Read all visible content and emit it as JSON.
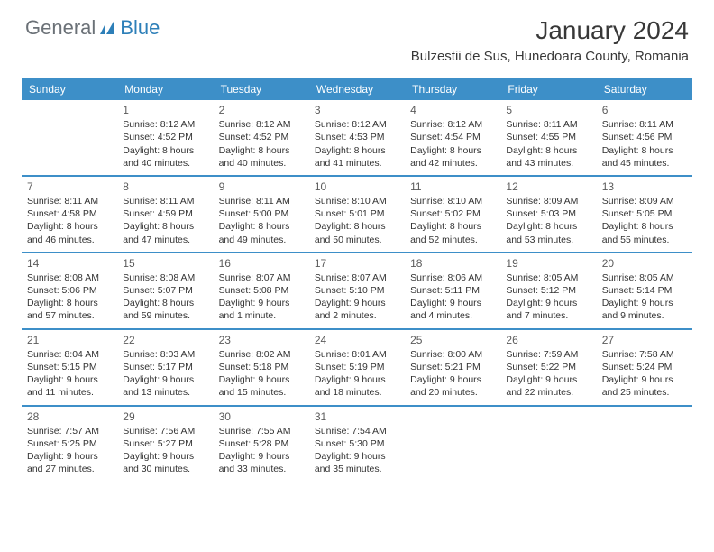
{
  "logo": {
    "general": "General",
    "blue": "Blue"
  },
  "title": "January 2024",
  "location": "Bulzestii de Sus, Hunedoara County, Romania",
  "colors": {
    "header_bg": "#3d8fc8",
    "header_text": "#ffffff",
    "row_border": "#3d8fc8",
    "logo_gray": "#6b7177",
    "logo_blue": "#2d7fb8",
    "text": "#333333",
    "background": "#ffffff"
  },
  "day_headers": [
    "Sunday",
    "Monday",
    "Tuesday",
    "Wednesday",
    "Thursday",
    "Friday",
    "Saturday"
  ],
  "weeks": [
    [
      {
        "num": "",
        "lines": []
      },
      {
        "num": "1",
        "lines": [
          "Sunrise: 8:12 AM",
          "Sunset: 4:52 PM",
          "Daylight: 8 hours",
          "and 40 minutes."
        ]
      },
      {
        "num": "2",
        "lines": [
          "Sunrise: 8:12 AM",
          "Sunset: 4:52 PM",
          "Daylight: 8 hours",
          "and 40 minutes."
        ]
      },
      {
        "num": "3",
        "lines": [
          "Sunrise: 8:12 AM",
          "Sunset: 4:53 PM",
          "Daylight: 8 hours",
          "and 41 minutes."
        ]
      },
      {
        "num": "4",
        "lines": [
          "Sunrise: 8:12 AM",
          "Sunset: 4:54 PM",
          "Daylight: 8 hours",
          "and 42 minutes."
        ]
      },
      {
        "num": "5",
        "lines": [
          "Sunrise: 8:11 AM",
          "Sunset: 4:55 PM",
          "Daylight: 8 hours",
          "and 43 minutes."
        ]
      },
      {
        "num": "6",
        "lines": [
          "Sunrise: 8:11 AM",
          "Sunset: 4:56 PM",
          "Daylight: 8 hours",
          "and 45 minutes."
        ]
      }
    ],
    [
      {
        "num": "7",
        "lines": [
          "Sunrise: 8:11 AM",
          "Sunset: 4:58 PM",
          "Daylight: 8 hours",
          "and 46 minutes."
        ]
      },
      {
        "num": "8",
        "lines": [
          "Sunrise: 8:11 AM",
          "Sunset: 4:59 PM",
          "Daylight: 8 hours",
          "and 47 minutes."
        ]
      },
      {
        "num": "9",
        "lines": [
          "Sunrise: 8:11 AM",
          "Sunset: 5:00 PM",
          "Daylight: 8 hours",
          "and 49 minutes."
        ]
      },
      {
        "num": "10",
        "lines": [
          "Sunrise: 8:10 AM",
          "Sunset: 5:01 PM",
          "Daylight: 8 hours",
          "and 50 minutes."
        ]
      },
      {
        "num": "11",
        "lines": [
          "Sunrise: 8:10 AM",
          "Sunset: 5:02 PM",
          "Daylight: 8 hours",
          "and 52 minutes."
        ]
      },
      {
        "num": "12",
        "lines": [
          "Sunrise: 8:09 AM",
          "Sunset: 5:03 PM",
          "Daylight: 8 hours",
          "and 53 minutes."
        ]
      },
      {
        "num": "13",
        "lines": [
          "Sunrise: 8:09 AM",
          "Sunset: 5:05 PM",
          "Daylight: 8 hours",
          "and 55 minutes."
        ]
      }
    ],
    [
      {
        "num": "14",
        "lines": [
          "Sunrise: 8:08 AM",
          "Sunset: 5:06 PM",
          "Daylight: 8 hours",
          "and 57 minutes."
        ]
      },
      {
        "num": "15",
        "lines": [
          "Sunrise: 8:08 AM",
          "Sunset: 5:07 PM",
          "Daylight: 8 hours",
          "and 59 minutes."
        ]
      },
      {
        "num": "16",
        "lines": [
          "Sunrise: 8:07 AM",
          "Sunset: 5:08 PM",
          "Daylight: 9 hours",
          "and 1 minute."
        ]
      },
      {
        "num": "17",
        "lines": [
          "Sunrise: 8:07 AM",
          "Sunset: 5:10 PM",
          "Daylight: 9 hours",
          "and 2 minutes."
        ]
      },
      {
        "num": "18",
        "lines": [
          "Sunrise: 8:06 AM",
          "Sunset: 5:11 PM",
          "Daylight: 9 hours",
          "and 4 minutes."
        ]
      },
      {
        "num": "19",
        "lines": [
          "Sunrise: 8:05 AM",
          "Sunset: 5:12 PM",
          "Daylight: 9 hours",
          "and 7 minutes."
        ]
      },
      {
        "num": "20",
        "lines": [
          "Sunrise: 8:05 AM",
          "Sunset: 5:14 PM",
          "Daylight: 9 hours",
          "and 9 minutes."
        ]
      }
    ],
    [
      {
        "num": "21",
        "lines": [
          "Sunrise: 8:04 AM",
          "Sunset: 5:15 PM",
          "Daylight: 9 hours",
          "and 11 minutes."
        ]
      },
      {
        "num": "22",
        "lines": [
          "Sunrise: 8:03 AM",
          "Sunset: 5:17 PM",
          "Daylight: 9 hours",
          "and 13 minutes."
        ]
      },
      {
        "num": "23",
        "lines": [
          "Sunrise: 8:02 AM",
          "Sunset: 5:18 PM",
          "Daylight: 9 hours",
          "and 15 minutes."
        ]
      },
      {
        "num": "24",
        "lines": [
          "Sunrise: 8:01 AM",
          "Sunset: 5:19 PM",
          "Daylight: 9 hours",
          "and 18 minutes."
        ]
      },
      {
        "num": "25",
        "lines": [
          "Sunrise: 8:00 AM",
          "Sunset: 5:21 PM",
          "Daylight: 9 hours",
          "and 20 minutes."
        ]
      },
      {
        "num": "26",
        "lines": [
          "Sunrise: 7:59 AM",
          "Sunset: 5:22 PM",
          "Daylight: 9 hours",
          "and 22 minutes."
        ]
      },
      {
        "num": "27",
        "lines": [
          "Sunrise: 7:58 AM",
          "Sunset: 5:24 PM",
          "Daylight: 9 hours",
          "and 25 minutes."
        ]
      }
    ],
    [
      {
        "num": "28",
        "lines": [
          "Sunrise: 7:57 AM",
          "Sunset: 5:25 PM",
          "Daylight: 9 hours",
          "and 27 minutes."
        ]
      },
      {
        "num": "29",
        "lines": [
          "Sunrise: 7:56 AM",
          "Sunset: 5:27 PM",
          "Daylight: 9 hours",
          "and 30 minutes."
        ]
      },
      {
        "num": "30",
        "lines": [
          "Sunrise: 7:55 AM",
          "Sunset: 5:28 PM",
          "Daylight: 9 hours",
          "and 33 minutes."
        ]
      },
      {
        "num": "31",
        "lines": [
          "Sunrise: 7:54 AM",
          "Sunset: 5:30 PM",
          "Daylight: 9 hours",
          "and 35 minutes."
        ]
      },
      {
        "num": "",
        "lines": []
      },
      {
        "num": "",
        "lines": []
      },
      {
        "num": "",
        "lines": []
      }
    ]
  ]
}
